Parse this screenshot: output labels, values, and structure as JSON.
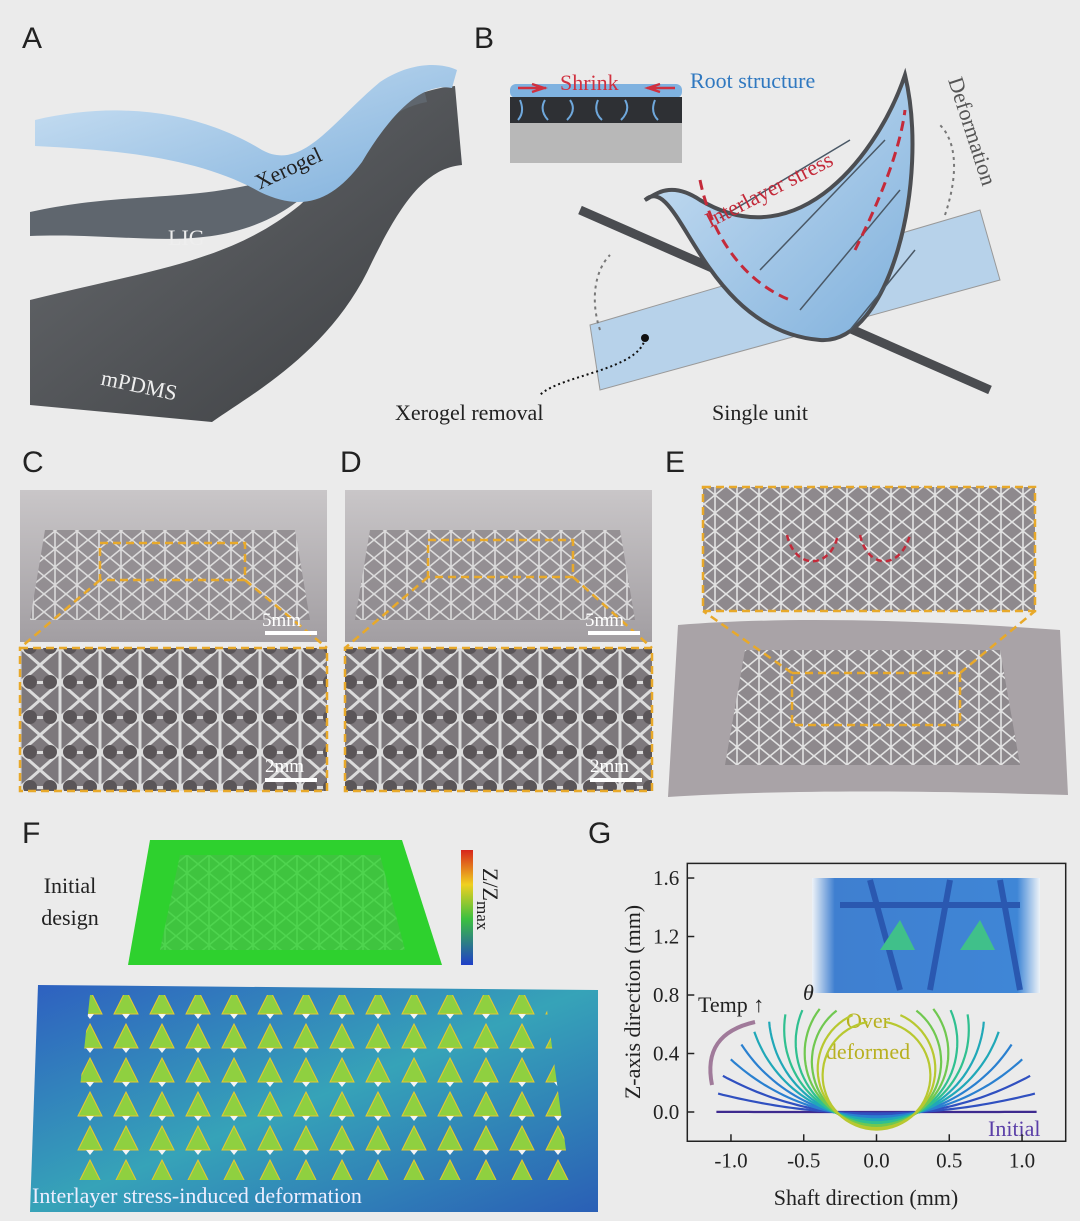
{
  "panels": {
    "A": {
      "label": "A",
      "layers": [
        "Xerogel",
        "LIG",
        "mPDMS"
      ]
    },
    "B": {
      "label": "B",
      "inset": {
        "shrink": "Shrink",
        "root": "Root structure"
      },
      "stress": "Interlayer stress",
      "deformation": "Deformation",
      "removal": "Xerogel removal",
      "caption": "Single unit"
    },
    "C": {
      "label": "C",
      "scale_bars": [
        "5mm",
        "2mm"
      ]
    },
    "D": {
      "label": "D",
      "scale_bars": [
        "5mm",
        "2mm"
      ]
    },
    "E": {
      "label": "E"
    },
    "F": {
      "label": "F",
      "initial": [
        "Initial",
        "design"
      ],
      "colorbar": {
        "symbol": "Z/Z",
        "subscript": "max"
      },
      "caption": "Interlayer stress-induced deformation"
    },
    "G": {
      "label": "G"
    }
  },
  "chart_data": {
    "type": "line",
    "xlabel": "Shaft direction (mm)",
    "ylabel": "Z-axis direction (mm)",
    "xlim": [
      -1.3,
      1.3
    ],
    "ylim": [
      -0.2,
      1.7
    ],
    "xticks": [
      {
        "value": -1,
        "label": "-1.0"
      },
      -0.5,
      {
        "value": 0,
        "label": "0.0"
      },
      0.5,
      {
        "value": 1,
        "label": "1.0"
      }
    ],
    "yticks": [
      {
        "value": 0,
        "label": "0.0"
      },
      0.4,
      0.8,
      1.2,
      1.6
    ],
    "annotations": {
      "temp": "Temp ↑",
      "theta": "θ",
      "over": [
        "Over",
        "deformed"
      ],
      "initial": "Initial"
    }
  }
}
